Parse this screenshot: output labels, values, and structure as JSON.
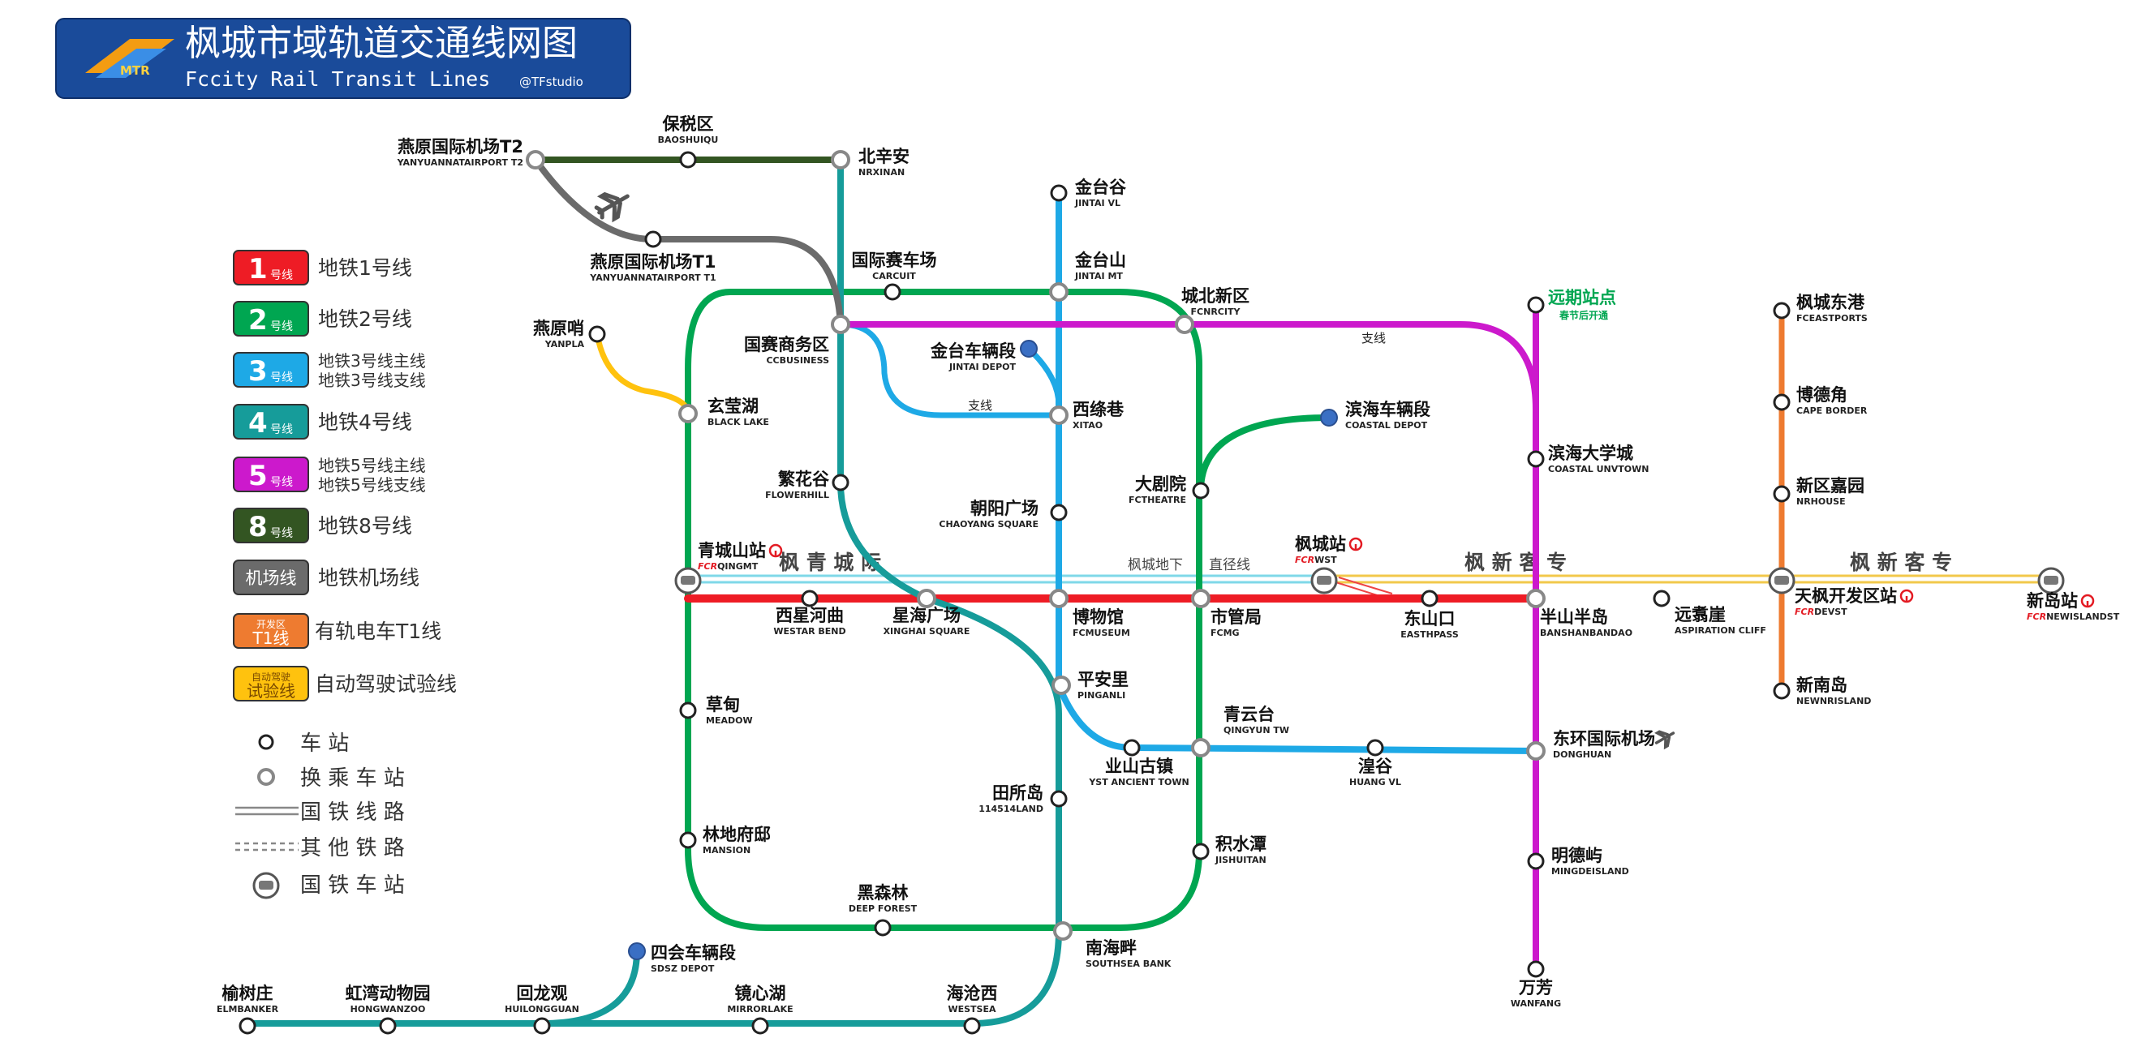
{
  "header": {
    "title_cn": "枫城市域轨道交通线网图",
    "title_en": "Fccity Rail Transit Lines",
    "credit": "@TFstudio",
    "logo_text": "MTR"
  },
  "legend": {
    "lines": [
      {
        "badge": "1",
        "suffix": "号线",
        "color": "#ee1c25",
        "text": [
          "地铁1号线"
        ]
      },
      {
        "badge": "2",
        "suffix": "号线",
        "color": "#00a651",
        "text": [
          "地铁2号线"
        ]
      },
      {
        "badge": "3",
        "suffix": "号线",
        "color": "#1ea9e6",
        "text": [
          "地铁3号线主线",
          "地铁3号线支线"
        ]
      },
      {
        "badge": "4",
        "suffix": "号线",
        "color": "#169c9a",
        "text": [
          "地铁4号线"
        ]
      },
      {
        "badge": "5",
        "suffix": "号线",
        "color": "#cc19cc",
        "text": [
          "地铁5号线主线",
          "地铁5号线支线"
        ]
      },
      {
        "badge": "8",
        "suffix": "号线",
        "color": "#335522",
        "text": [
          "地铁8号线"
        ]
      },
      {
        "badge": "机场线",
        "suffix": "",
        "color": "#6b6b6b",
        "text": [
          "地铁机场线"
        ]
      },
      {
        "badge": "T1线",
        "badge_top": "开发区",
        "suffix": "",
        "color": "#ee7b30",
        "text": [
          "有轨电车T1线"
        ]
      },
      {
        "badge": "试验线",
        "badge_top": "自动驾驶",
        "suffix": "",
        "color": "#ffc20e",
        "text": [
          "自动驾驶试验线"
        ]
      }
    ],
    "symbols": [
      {
        "icon": "station",
        "text": "车   站"
      },
      {
        "icon": "interchange",
        "text": "换 乘 车 站"
      },
      {
        "icon": "national-railway",
        "text": "国 铁 线 路"
      },
      {
        "icon": "other-railway",
        "text": "其 他 铁 路"
      },
      {
        "icon": "national-railway-station",
        "text": "国 铁 车 站"
      }
    ]
  },
  "colors": {
    "line1": "#ee1c25",
    "line2": "#00a651",
    "line3": "#1ea9e6",
    "line4": "#169c9a",
    "line5": "#cc19cc",
    "line8": "#335522",
    "airport": "#6b6b6b",
    "t1": "#ee7b30",
    "auto": "#ffc20e",
    "rail_cyan": "#7fd8e8",
    "rail_yellow": "#f2c84b",
    "depot": "#3a6fc4"
  },
  "railways": {
    "qingcheng_label": "枫   青   城   际",
    "xinke_label_1": "枫   新   客   专",
    "xinke_label_2": "枫   新   客   专",
    "underground_label": "枫城地下",
    "straight_label": "直径线"
  },
  "branch_labels": {
    "line3_branch": "支线",
    "line5_branch": "支线"
  },
  "future": {
    "name": "远期站点",
    "note": "春节后开通"
  },
  "stations": [
    {
      "cn": "燕原国际机场T2",
      "en": "YANYUANNATAIRPORT T2"
    },
    {
      "cn": "保税区",
      "en": "BAOSHUIQU"
    },
    {
      "cn": "北辛安",
      "en": "NRXINAN"
    },
    {
      "cn": "燕原国际机场T1",
      "en": "YANYUANNATAIRPORT T1"
    },
    {
      "cn": "国际赛车场",
      "en": "CARCUIT"
    },
    {
      "cn": "金台谷",
      "en": "JINTAI VL"
    },
    {
      "cn": "金台山",
      "en": "JINTAI MT"
    },
    {
      "cn": "城北新区",
      "en": "FCNRCITY"
    },
    {
      "cn": "国赛商务区",
      "en": "CCBUSINESS"
    },
    {
      "cn": "燕原哨",
      "en": "YANPLA"
    },
    {
      "cn": "金台车辆段",
      "en": "JINTAI DEPOT"
    },
    {
      "cn": "玄莹湖",
      "en": "BLACK LAKE"
    },
    {
      "cn": "西绦巷",
      "en": "XITAO"
    },
    {
      "cn": "滨海车辆段",
      "en": "COASTAL DEPOT"
    },
    {
      "cn": "繁花谷",
      "en": "FLOWERHILL"
    },
    {
      "cn": "大剧院",
      "en": "FCTHEATRE"
    },
    {
      "cn": "朝阳广场",
      "en": "CHAOYANG SQUARE"
    },
    {
      "cn": "滨海大学城",
      "en": "COASTAL UNVTOWN"
    },
    {
      "cn": "青城山站",
      "en": "QINGMT"
    },
    {
      "cn": "枫城站",
      "en": "WST"
    },
    {
      "cn": "西星河曲",
      "en": "WESTAR BEND"
    },
    {
      "cn": "星海广场",
      "en": "XINGHAI SQUARE"
    },
    {
      "cn": "博物馆",
      "en": "FCMUSEUM"
    },
    {
      "cn": "市管局",
      "en": "FCMG"
    },
    {
      "cn": "东山口",
      "en": "EASTHPASS"
    },
    {
      "cn": "半山半岛",
      "en": "BANSHANBANDAO"
    },
    {
      "cn": "远翥崖",
      "en": "ASPIRATION CLIFF"
    },
    {
      "cn": "草甸",
      "en": "MEADOW"
    },
    {
      "cn": "平安里",
      "en": "PINGANLI"
    },
    {
      "cn": "青云台",
      "en": "QINGYUN TW"
    },
    {
      "cn": "业山古镇",
      "en": "YST ANCIENT TOWN"
    },
    {
      "cn": "湟谷",
      "en": "HUANG VL"
    },
    {
      "cn": "东环国际机场",
      "en": "DONGHUAN"
    },
    {
      "cn": "田所岛",
      "en": "114514LAND"
    },
    {
      "cn": "林地府邸",
      "en": "MANSION"
    },
    {
      "cn": "积水潭",
      "en": "JISHUITAN"
    },
    {
      "cn": "明德屿",
      "en": "MINGDEISLAND"
    },
    {
      "cn": "黑森林",
      "en": "DEEP FOREST"
    },
    {
      "cn": "南海畔",
      "en": "SOUTHSEA BANK"
    },
    {
      "cn": "四会车辆段",
      "en": "SDSZ DEPOT"
    },
    {
      "cn": "万芳",
      "en": "WANFANG"
    },
    {
      "cn": "榆树庄",
      "en": "ELMBANKER"
    },
    {
      "cn": "虹湾动物园",
      "en": "HONGWANZOO"
    },
    {
      "cn": "回龙观",
      "en": "HUILONGGUAN"
    },
    {
      "cn": "镜心湖",
      "en": "MIRRORLAKE"
    },
    {
      "cn": "海沧西",
      "en": "WESTSEA"
    },
    {
      "cn": "枫城东港",
      "en": "FCEASTPORTS"
    },
    {
      "cn": "博德角",
      "en": "CAPE BORDER"
    },
    {
      "cn": "新区嘉园",
      "en": "NRHOUSE"
    },
    {
      "cn": "天枫开发区站",
      "en": "DEVST"
    },
    {
      "cn": "新南岛",
      "en": "NEWNRISLAND"
    },
    {
      "cn": "新岛站",
      "en": "NEWISLANDST"
    }
  ],
  "rail_brand": "FCR"
}
